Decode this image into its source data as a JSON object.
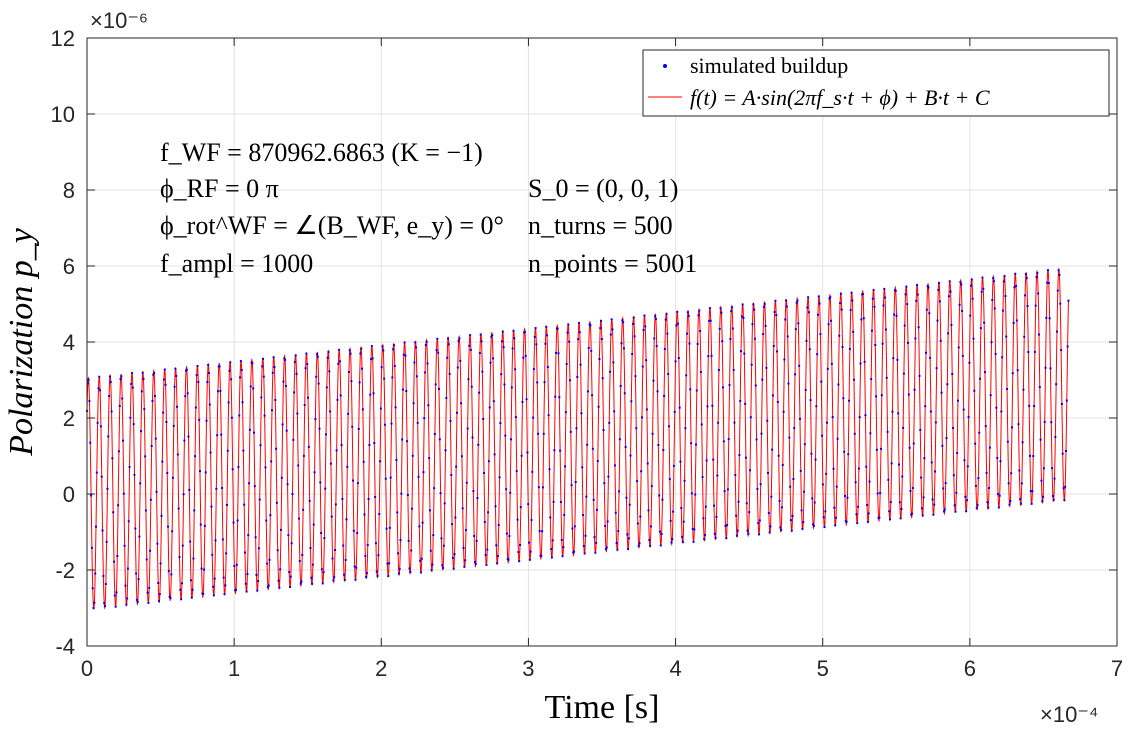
{
  "chart_data": {
    "type": "line",
    "title": "",
    "xlabel": "Time [s]",
    "ylabel": "Polarization p_y",
    "x_exponent": "×10⁻⁴",
    "y_exponent": "×10⁻⁶",
    "xlim": [
      0,
      7
    ],
    "ylim": [
      -4,
      12
    ],
    "xticks": [
      "0",
      "1",
      "2",
      "3",
      "4",
      "5",
      "6",
      "7"
    ],
    "yticks": [
      "-4",
      "-2",
      "0",
      "2",
      "4",
      "6",
      "8",
      "10",
      "12"
    ],
    "grid": true,
    "legend_position": "top-right",
    "series": [
      {
        "name": "simulated buildup",
        "style": "dots",
        "color": "#0000ff",
        "signal": {
          "t_start": 0,
          "t_end": 6.67,
          "points": 5001,
          "amplitude": 3.05,
          "offset_start": 0.0,
          "offset_end": 2.9,
          "cycles": 90,
          "phase": 0.8
        }
      },
      {
        "name": "f(t) = A·sin(2πf_s·t + ϕ) + B·t + C",
        "style": "line",
        "color": "#ff0000",
        "signal": {
          "t_start": 0,
          "t_end": 6.67,
          "points": 5001,
          "amplitude": 3.05,
          "offset_start": 0.0,
          "offset_end": 2.9,
          "cycles": 90,
          "phase": 0.8
        }
      }
    ],
    "annotations": [
      {
        "text": "f_WF = 870962.6863 (K = −1)"
      },
      {
        "text": "ϕ_RF = 0 π"
      },
      {
        "text": "ϕ_rot^WF = ∠(B_WF, e_y) = 0°"
      },
      {
        "text": "f_ampl = 1000"
      },
      {
        "text": "S_0 = (0, 0, 1)"
      },
      {
        "text": "n_turns = 500"
      },
      {
        "text": "n_points = 5001"
      }
    ]
  }
}
